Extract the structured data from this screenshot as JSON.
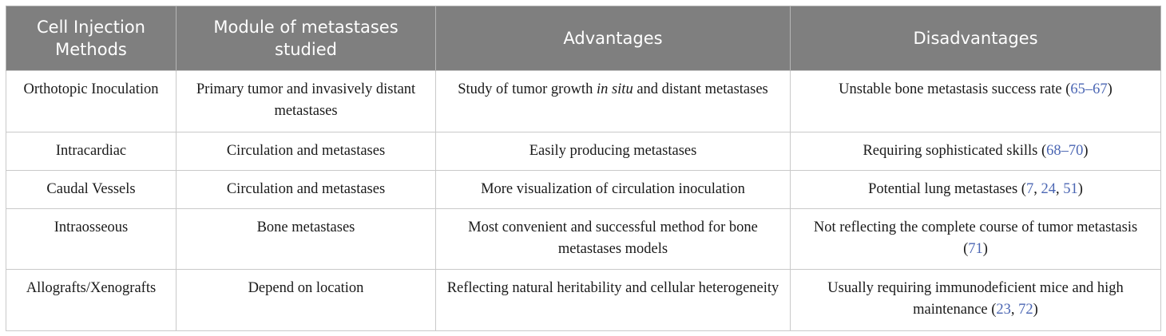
{
  "table": {
    "headers": [
      "Cell Injection Methods",
      "Module of metastases studied",
      "Advantages",
      "Disadvantages"
    ],
    "rows": [
      {
        "method": "Orthotopic Inoculation",
        "module": "Primary tumor and invasively distant metastases",
        "advantages_pre": "Study of tumor growth",
        "advantages_italic": "in situ",
        "advantages_post": "and distant metastases",
        "disadvantages": "Unstable bone metastasis success rate",
        "disadvantages_refs": "65–67"
      },
      {
        "method": "Intracardiac",
        "module": "Circulation and metastases",
        "advantages": "Easily producing metastases",
        "disadvantages": "Requiring sophisticated skills",
        "disadvantages_refs": "68–70"
      },
      {
        "method": "Caudal Vessels",
        "module": "Circulation and metastases",
        "advantages": "More visualization of circulation inoculation",
        "disadvantages": "Potential lung metastases",
        "disadvantages_refs": [
          "7",
          "24",
          "51"
        ]
      },
      {
        "method": "Intraosseous",
        "module": "Bone metastases",
        "advantages": "Most convenient and successful method for bone metastases models",
        "disadvantages": "Not reflecting the complete course of tumor metastasis",
        "disadvantages_refs": "71"
      },
      {
        "method": "Allografts/Xenografts",
        "module": "Depend on location",
        "advantages": "Reflecting natural heritability and cellular heterogeneity",
        "disadvantages": "Usually requiring immunodeficient mice and high maintenance",
        "disadvantages_refs": [
          "23",
          "72"
        ]
      }
    ]
  },
  "colors": {
    "header_bg": "#7f7f7f",
    "header_text": "#ffffff",
    "reference_link": "#4b66b3",
    "border": "#c9c9c9"
  }
}
